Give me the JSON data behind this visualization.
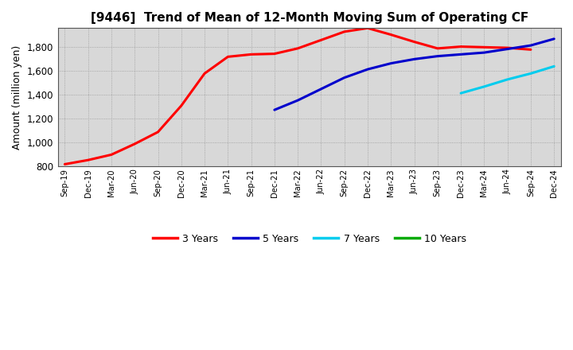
{
  "title": "[9446]  Trend of Mean of 12-Month Moving Sum of Operating CF",
  "ylabel": "Amount (million yen)",
  "ylim": [
    800,
    1960
  ],
  "yticks": [
    800,
    1000,
    1200,
    1400,
    1600,
    1800
  ],
  "background_color": "#ffffff",
  "plot_bg_color": "#d8d8d8",
  "grid_color": "#999999",
  "x_labels": [
    "Sep-19",
    "Dec-19",
    "Mar-20",
    "Jun-20",
    "Sep-20",
    "Dec-20",
    "Mar-21",
    "Jun-21",
    "Sep-21",
    "Dec-21",
    "Mar-22",
    "Jun-22",
    "Sep-22",
    "Dec-22",
    "Mar-23",
    "Jun-23",
    "Sep-23",
    "Dec-23",
    "Mar-24",
    "Jun-24",
    "Sep-24",
    "Dec-24"
  ],
  "series": {
    "3 Years": {
      "color": "#ff0000",
      "linewidth": 2.2,
      "values": [
        820,
        855,
        900,
        990,
        1090,
        1310,
        1580,
        1720,
        1740,
        1745,
        1790,
        1860,
        1930,
        1960,
        1905,
        1845,
        1790,
        1805,
        1800,
        1795,
        1780,
        null
      ]
    },
    "5 Years": {
      "color": "#0000cc",
      "linewidth": 2.2,
      "values": [
        null,
        null,
        null,
        null,
        null,
        null,
        null,
        null,
        null,
        1275,
        1355,
        1450,
        1545,
        1615,
        1665,
        1700,
        1725,
        1740,
        1755,
        1785,
        1815,
        1870
      ]
    },
    "7 Years": {
      "color": "#00ccee",
      "linewidth": 2.2,
      "values": [
        null,
        null,
        null,
        null,
        null,
        null,
        null,
        null,
        null,
        null,
        null,
        null,
        null,
        null,
        null,
        null,
        null,
        1415,
        1470,
        1530,
        1580,
        1640
      ]
    },
    "10 Years": {
      "color": "#00aa00",
      "linewidth": 2.2,
      "values": [
        null,
        null,
        null,
        null,
        null,
        null,
        null,
        null,
        null,
        null,
        null,
        null,
        null,
        null,
        null,
        null,
        null,
        null,
        null,
        null,
        null,
        null
      ]
    }
  },
  "legend_labels": [
    "3 Years",
    "5 Years",
    "7 Years",
    "10 Years"
  ],
  "legend_colors": [
    "#ff0000",
    "#0000cc",
    "#00ccee",
    "#00aa00"
  ]
}
